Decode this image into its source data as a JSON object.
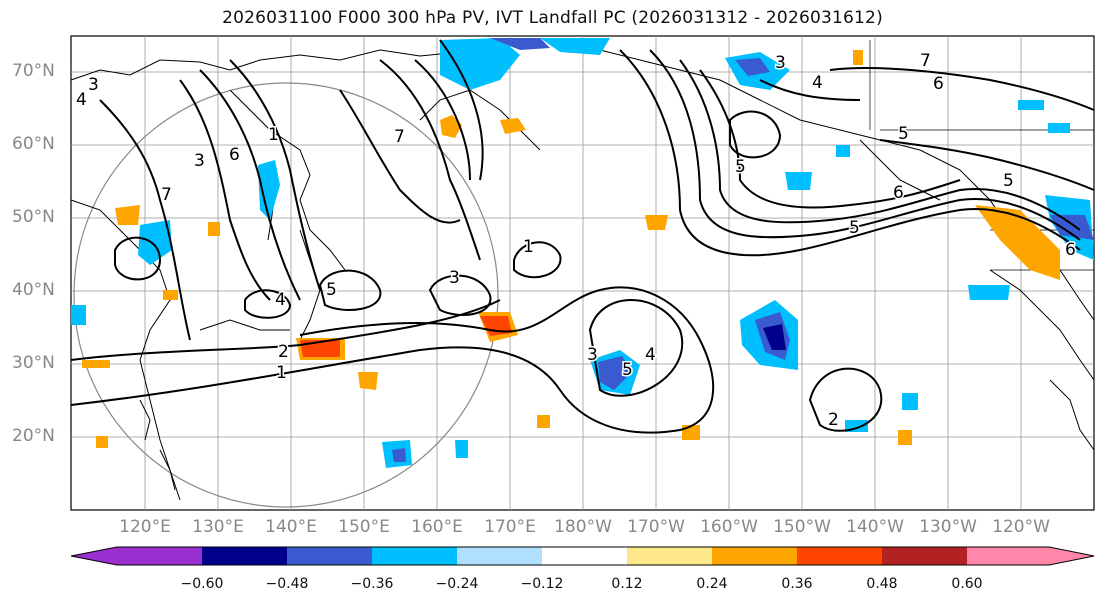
{
  "title": "2026031100 F000 300 hPa PV, IVT Landfall PC (2026031312 - 2026031612)",
  "lat_labels": [
    "70°N",
    "60°N",
    "50°N",
    "40°N",
    "30°N",
    "20°N"
  ],
  "lon_labels": [
    "120°E",
    "130°E",
    "140°E",
    "150°E",
    "160°E",
    "170°E",
    "180°W",
    "170°W",
    "160°W",
    "150°W",
    "140°W",
    "130°W",
    "120°W"
  ],
  "contour_labels": [
    "1",
    "2",
    "3",
    "4",
    "5",
    "6",
    "7"
  ],
  "colorbar": {
    "colors": [
      "#9b30d0",
      "#00008b",
      "#3a5bd0",
      "#00bfff",
      "#b0e0ff",
      "#ffffff",
      "#ffe88a",
      "#ffa500",
      "#ff4500",
      "#b22222",
      "#ff88aa"
    ],
    "ticks": [
      "−0.60",
      "−0.48",
      "−0.36",
      "−0.24",
      "−0.12",
      "0.12",
      "0.24",
      "0.36",
      "0.48",
      "0.60"
    ]
  }
}
